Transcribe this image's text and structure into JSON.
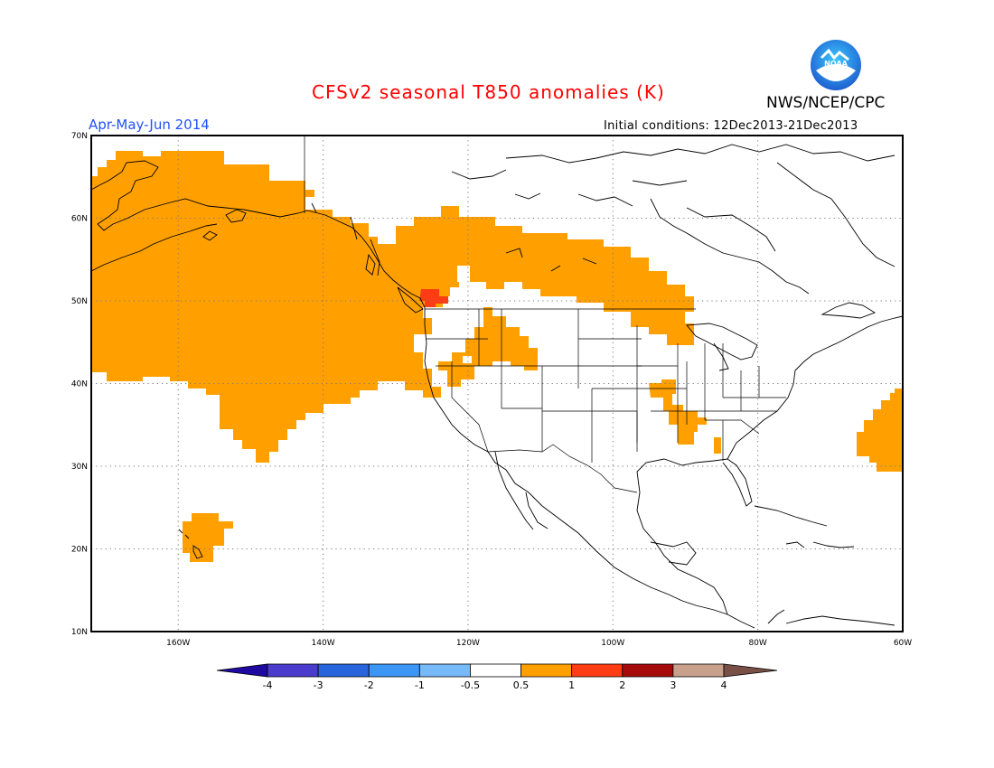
{
  "header": {
    "title": "CFSv2 seasonal T850 anomalies (K)",
    "period": "Apr-May-Jun 2014",
    "org": "NWS/NCEP/CPC",
    "initial_conditions": "Initial conditions: 12Dec2013-21Dec2013",
    "logo_text": "NOAA"
  },
  "map": {
    "projection": "equirectangular",
    "lon_range": [
      -172,
      -60
    ],
    "lat_range": [
      10,
      70
    ],
    "lat_labels": [
      "70N",
      "60N",
      "50N",
      "40N",
      "30N",
      "20N",
      "10N"
    ],
    "lon_labels": [
      "160W",
      "140W",
      "120W",
      "100W",
      "80W",
      "60W"
    ],
    "grid": "dotted",
    "colors": {
      "anom_0_5_1": "#ffa000",
      "anom_1_2": "#ff3c14",
      "coast": "#000000",
      "frame": "#000000"
    }
  },
  "colorbar": {
    "labels": [
      "-4",
      "-3",
      "-2",
      "-1",
      "-0.5",
      "0.5",
      "1",
      "2",
      "3",
      "4"
    ],
    "colors": [
      "#1e0aa0",
      "#4b3ccd",
      "#2864dc",
      "#3c96f5",
      "#78b9fa",
      "#ffffff",
      "#ffa000",
      "#ff3c14",
      "#a50a0a",
      "#c8a08c",
      "#785046"
    ]
  }
}
